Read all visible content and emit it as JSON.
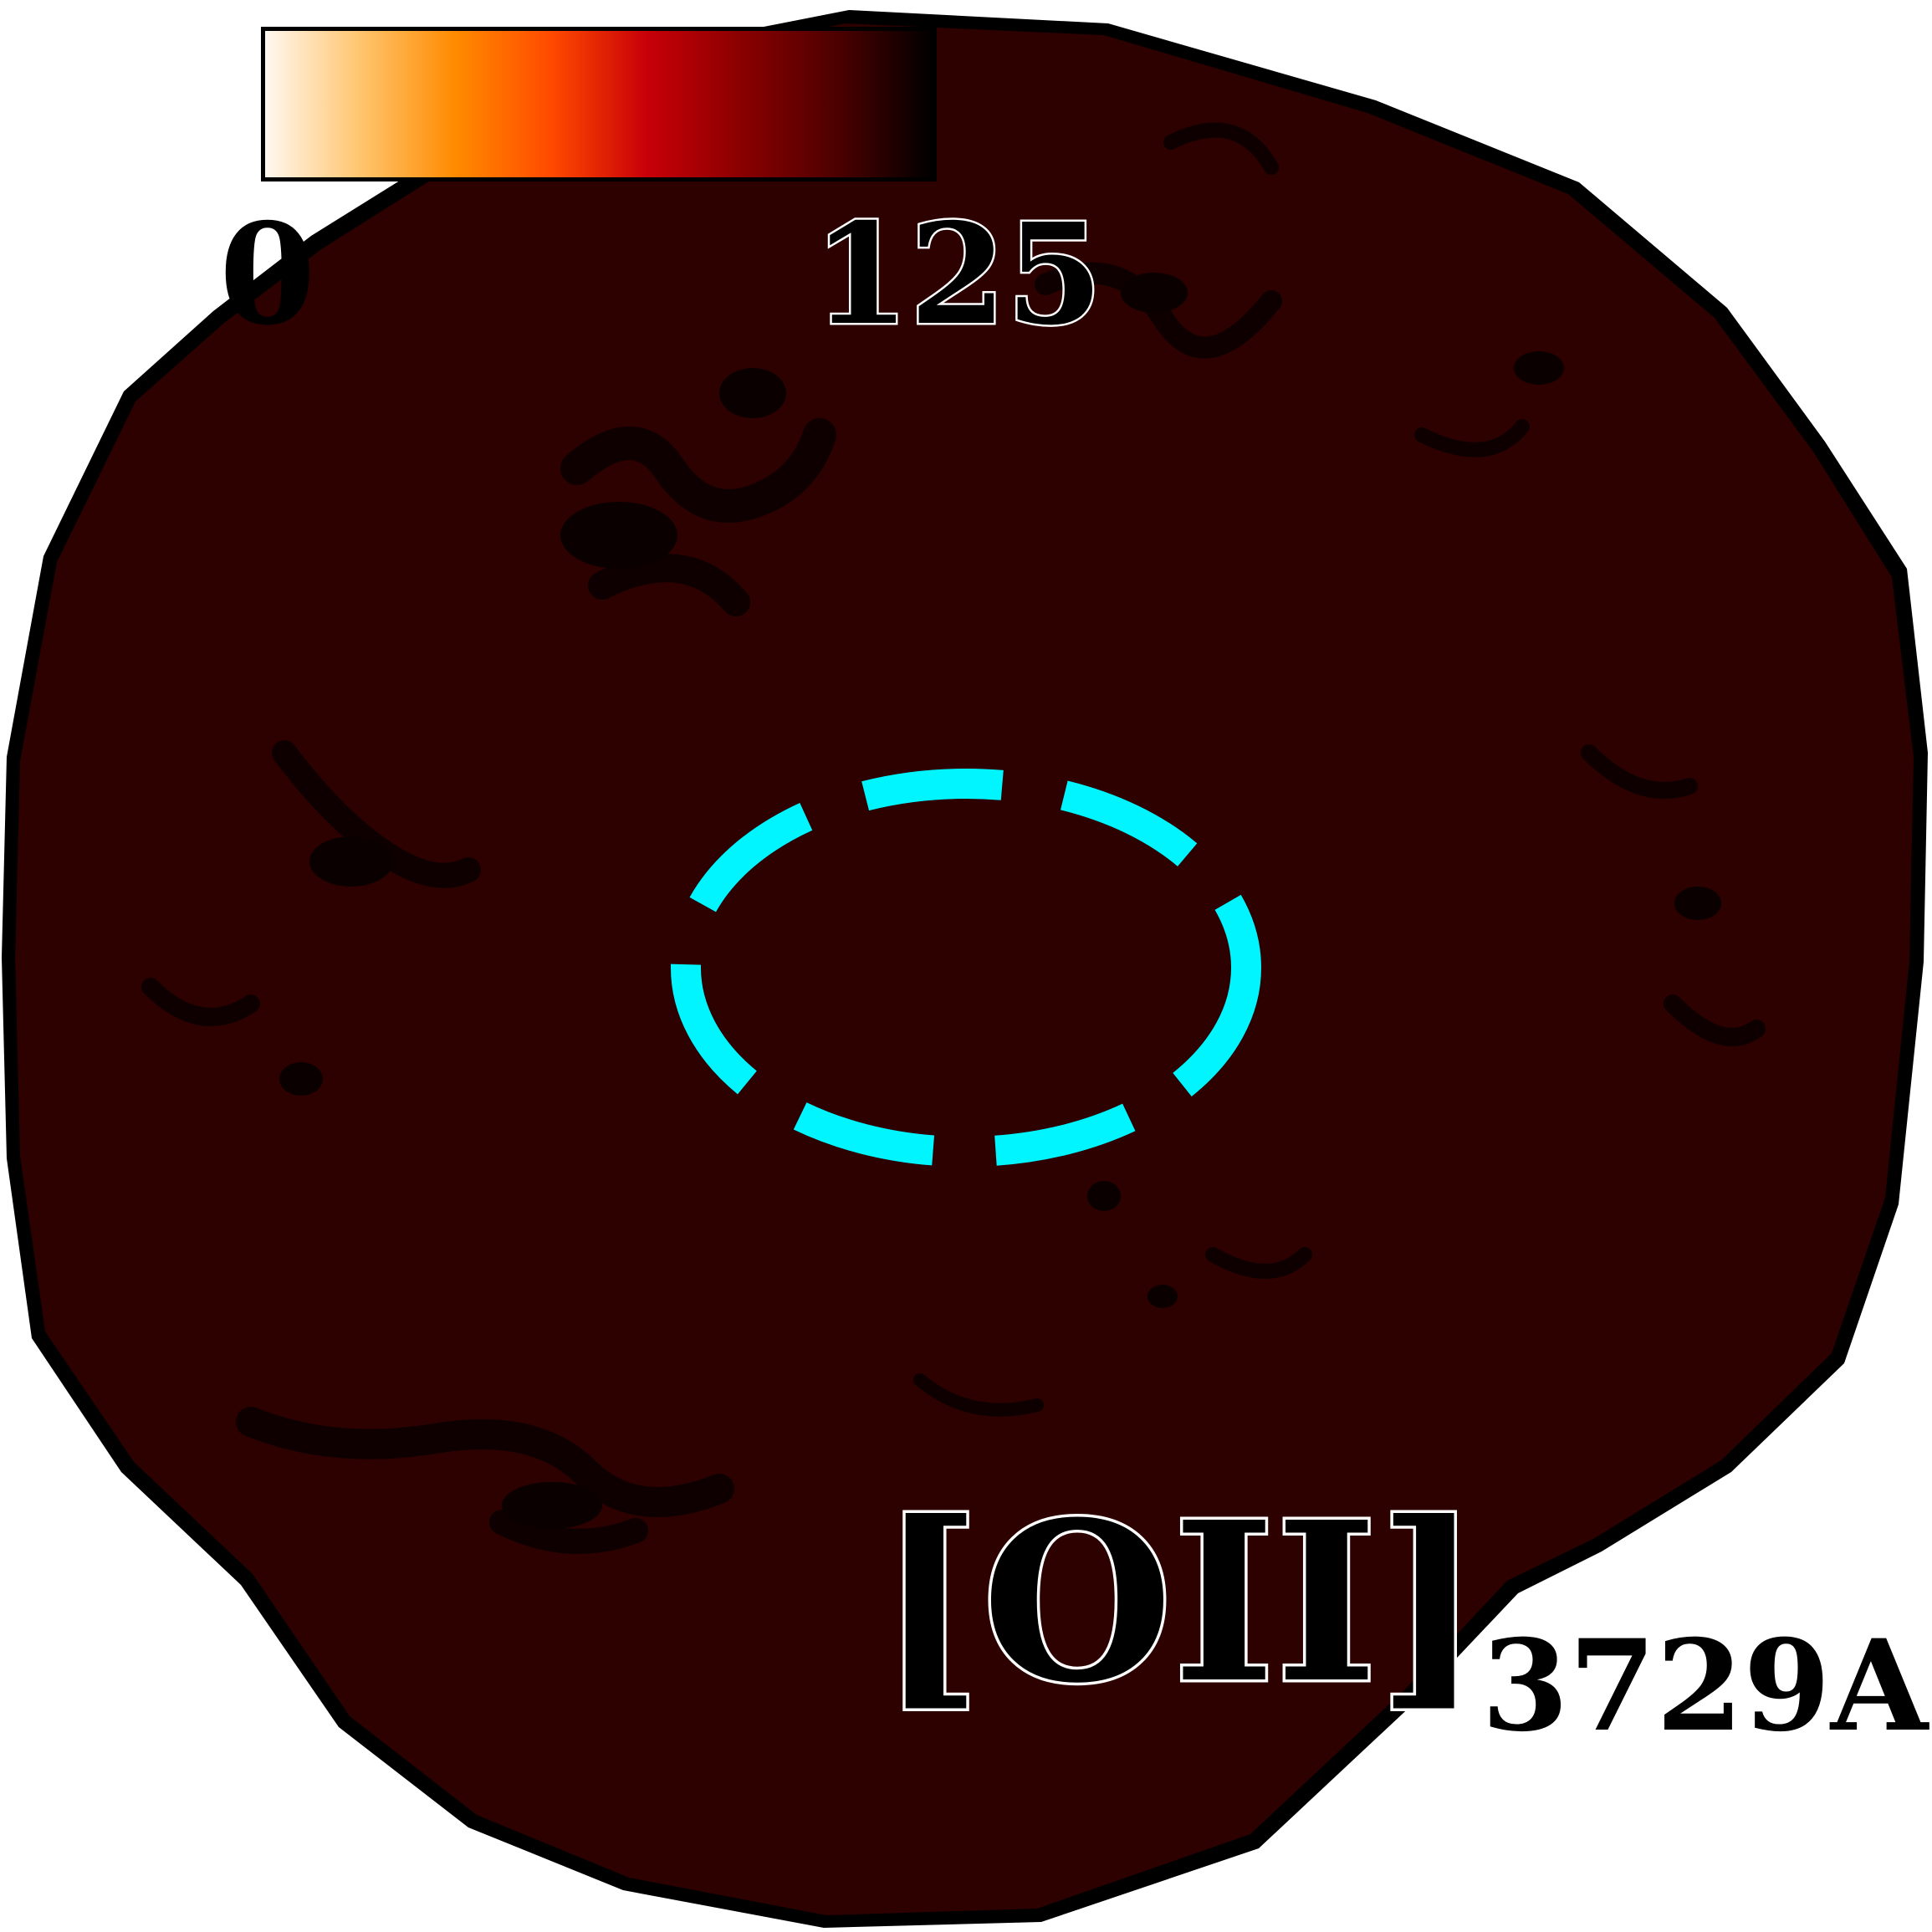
{
  "image": {
    "background_color": "#ffffff",
    "map_color": "#2c0100",
    "feature_color": "#0e0000",
    "marker_color": "#00f5ff"
  },
  "colorbar": {
    "min_label": "0",
    "max_label": "125",
    "colormap": [
      "#fff8f0",
      "#ffc56e",
      "#ff8a00",
      "#ff4a00",
      "#c80008",
      "#8a0000",
      "#4d0000",
      "#000000"
    ]
  },
  "emission_line": {
    "ion": "[OII]",
    "wavelength": "3729A"
  },
  "marker": {
    "shape": "ellipse",
    "style": "dashed"
  }
}
